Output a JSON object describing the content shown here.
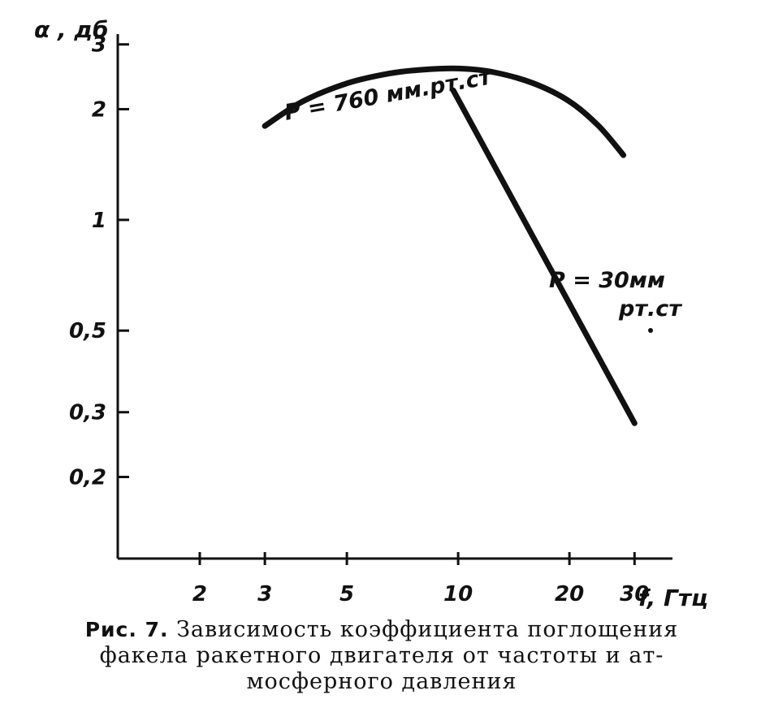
{
  "chart_data": {
    "type": "line",
    "title": "",
    "ylabel": "α , дб",
    "xlabel": "f, Гтц",
    "xscale": "log",
    "yscale": "log",
    "xlim": [
      1.2,
      38
    ],
    "ylim": [
      0.12,
      3.2
    ],
    "x_ticks": [
      2,
      3,
      5,
      10,
      20,
      30
    ],
    "x_tick_labels": [
      "2",
      "3",
      "5",
      "10",
      "20",
      "30"
    ],
    "y_ticks": [
      0.2,
      0.3,
      0.5,
      1,
      2,
      3
    ],
    "y_tick_labels": [
      "0,2",
      "0,3",
      "0,5",
      "1",
      "2",
      "3"
    ],
    "grid": false,
    "legend": "none",
    "series": [
      {
        "name": "P = 760 мм.рт.ст",
        "x": [
          3,
          3.8,
          5,
          6.5,
          8,
          10,
          12.5,
          16,
          20,
          24,
          28
        ],
        "y": [
          1.8,
          2.1,
          2.35,
          2.5,
          2.56,
          2.58,
          2.52,
          2.35,
          2.1,
          1.8,
          1.5
        ]
      },
      {
        "name": "P = 30мм рт.ст",
        "x": [
          9.7,
          30
        ],
        "y": [
          2.25,
          0.28
        ]
      }
    ]
  },
  "caption": {
    "fig_no": "Рис. 7.",
    "lines": [
      "Зависимость коэффициента поглощения",
      "факела ракетного  двигателя от частоты и ат-",
      "мосферного давления"
    ]
  },
  "labels": {
    "series1_text": "P = 760 мм.рт.ст",
    "series2_line1": "P = 30мм",
    "series2_line2": "рт.ст"
  }
}
